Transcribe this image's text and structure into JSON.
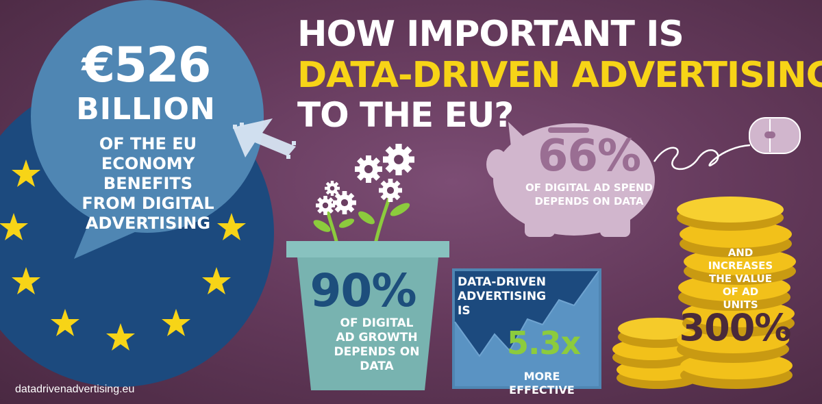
{
  "headline": {
    "line1": "HOW IMPORTANT IS",
    "line2": "DATA-DRIVEN ADVERTISING",
    "line3": "TO THE EU?"
  },
  "economy": {
    "amount": "€526",
    "unit": "BILLION",
    "caption_lines": [
      "OF THE EU",
      "ECONOMY BENEFITS",
      "FROM DIGITAL",
      "ADVERTISING"
    ]
  },
  "ad_spend": {
    "percent": "66%",
    "caption_lines": [
      "OF DIGITAL AD SPEND",
      "DEPENDS ON DATA"
    ]
  },
  "ad_growth": {
    "percent": "90%",
    "caption_lines": [
      "OF DIGITAL",
      "AD GROWTH",
      "DEPENDS ON",
      "DATA"
    ]
  },
  "effectiveness": {
    "title_lines": [
      "DATA-DRIVEN",
      "ADVERTISING IS"
    ],
    "value": "5.3x",
    "caption": "MORE EFFECTIVE"
  },
  "ad_units": {
    "caption_lines": [
      "AND",
      "INCREASES",
      "THE VALUE",
      "OF AD",
      "UNITS"
    ],
    "percent": "300%"
  },
  "footer": {
    "url": "datadrivenadvertising.eu"
  },
  "colors": {
    "background": "#653a5c",
    "eu_blue": "#1c4a7e",
    "eu_star": "#f7d417",
    "bubble": "#4f86b3",
    "headline_accent": "#f7d417",
    "pot": "#78b3b0",
    "panel": "#1c4a7e",
    "panel_value": "#8ccb3d",
    "coin": "#f2c11a",
    "piggy": "#d1b6cd"
  },
  "icons": [
    "eu-flag-circle",
    "speech-bubble",
    "cursor-arrow",
    "gear-flowers",
    "flower-pot",
    "trend-chart",
    "piggy-bank",
    "computer-mouse",
    "coin-stack"
  ]
}
